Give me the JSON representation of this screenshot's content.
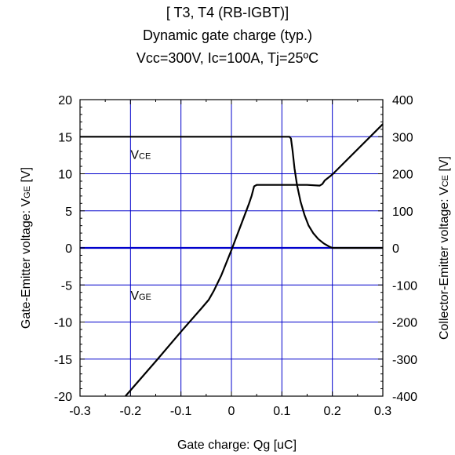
{
  "chart_data": {
    "type": "line",
    "title_lines": [
      "[ T3, T4 (RB-IGBT)]",
      "Dynamic gate charge  (typ.)",
      "Vcc=300V, Ic=100A, Tj=25ºC"
    ],
    "xlabel": "Gate charge: Qg [uC]",
    "ylabel_left": "Gate-Emitter voltage:  VGE [V]",
    "ylabel_right": "Collector-Emitter voltage: VCE [V]",
    "xlim": [
      -0.3,
      0.3
    ],
    "ylim_left": [
      -20,
      20
    ],
    "ylim_right": [
      -400,
      400
    ],
    "x_ticks": [
      "-0.3",
      "-0.2",
      "-0.1",
      "0",
      "0.1",
      "0.2",
      "0.3"
    ],
    "y_left_ticks": [
      "20",
      "15",
      "10",
      "5",
      "0",
      "-5",
      "-10",
      "-15",
      "-20"
    ],
    "y_right_ticks": [
      "400",
      "300",
      "200",
      "100",
      "0",
      "-100",
      "-200",
      "-300",
      "-400"
    ],
    "grid": true,
    "series": [
      {
        "name": "VCE",
        "axis": "right",
        "color": "#000000",
        "x": [
          -0.3,
          0.115,
          0.118,
          0.121,
          0.125,
          0.13,
          0.137,
          0.145,
          0.153,
          0.162,
          0.172,
          0.183,
          0.193,
          0.2,
          0.3
        ],
        "y": [
          300,
          300,
          295,
          265,
          215,
          170,
          125,
          88,
          60,
          40,
          24,
          12,
          4,
          0,
          0
        ]
      },
      {
        "name": "VGE",
        "axis": "left",
        "color": "#000000",
        "x": [
          -0.21,
          -0.15,
          -0.1,
          -0.06,
          -0.045,
          -0.035,
          -0.02,
          0.0,
          0.02,
          0.035,
          0.04,
          0.045,
          0.05,
          0.1,
          0.15,
          0.175,
          0.18,
          0.185,
          0.2,
          0.3
        ],
        "y": [
          -20,
          -15.3,
          -11.3,
          -8.2,
          -7.0,
          -5.8,
          -3.7,
          -0.3,
          3.3,
          6.0,
          7.0,
          8.3,
          8.5,
          8.5,
          8.5,
          8.4,
          8.6,
          9.1,
          9.9,
          16.7
        ]
      }
    ],
    "series_labels": [
      {
        "text": "VCE",
        "main": "V",
        "sub": "CE",
        "at_x": -0.2,
        "at_y_left": 12
      },
      {
        "text": "VGE",
        "main": "V",
        "sub": "GE",
        "at_x": -0.2,
        "at_y_left": -7
      }
    ],
    "zero_line_color": "#0000cc",
    "grid_color": "#0000cc"
  }
}
